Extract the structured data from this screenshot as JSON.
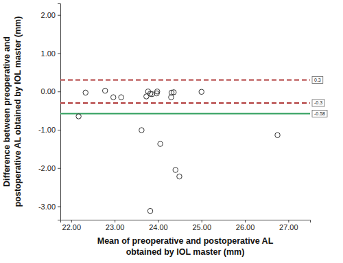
{
  "chart_data": {
    "type": "scatter",
    "xlabel": [
      "Mean of preoperative and postoperative AL",
      "obtained by IOL master (mm)"
    ],
    "ylabel": [
      "Difference between preoperative and",
      "postoperative AL obtained by IOL master (mm)"
    ],
    "x": [
      22.17,
      22.33,
      22.78,
      22.97,
      23.15,
      23.62,
      23.73,
      23.77,
      23.82,
      23.86,
      23.82,
      23.97,
      23.98,
      24.05,
      24.3,
      24.31,
      24.36,
      24.4,
      24.49,
      25.0,
      26.75
    ],
    "values": [
      -0.65,
      -0.03,
      0.02,
      -0.15,
      -0.15,
      -1.01,
      -0.13,
      0.0,
      -0.06,
      -0.07,
      -3.12,
      -0.05,
      0.0,
      -1.37,
      -0.15,
      -0.03,
      -0.02,
      -2.05,
      -2.22,
      -0.01,
      -1.14
    ],
    "color": "#333333",
    "marker": "circle",
    "xlim": [
      21.75,
      27.5
    ],
    "ylim": [
      -3.35,
      2.3
    ],
    "xticks": [
      {
        "value": 22,
        "label": "22.00"
      },
      {
        "value": 23,
        "label": "23.00"
      },
      {
        "value": 24,
        "label": "24.00"
      },
      {
        "value": 25,
        "label": "25.00"
      },
      {
        "value": 26,
        "label": "26.00"
      },
      {
        "value": 27,
        "label": "27.00"
      }
    ],
    "yticks": [
      {
        "value": -3,
        "label": "-3.00"
      },
      {
        "value": -2,
        "label": "-2.00"
      },
      {
        "value": -1,
        "label": "-1.00"
      },
      {
        "value": 0,
        "label": "0.00"
      },
      {
        "value": 1,
        "label": "1.00"
      },
      {
        "value": 2,
        "label": "2.00"
      }
    ],
    "grid": false,
    "hlines": [
      {
        "value": 0.3,
        "label": "0.3",
        "color": "#b03a3a",
        "line_style": "dashed"
      },
      {
        "value": -0.3,
        "label": "-0.3",
        "color": "#b03a3a",
        "line_style": "dashed"
      },
      {
        "value": -0.58,
        "label": "-0.58",
        "color": "#2e9e5b",
        "line_style": "solid"
      }
    ]
  }
}
